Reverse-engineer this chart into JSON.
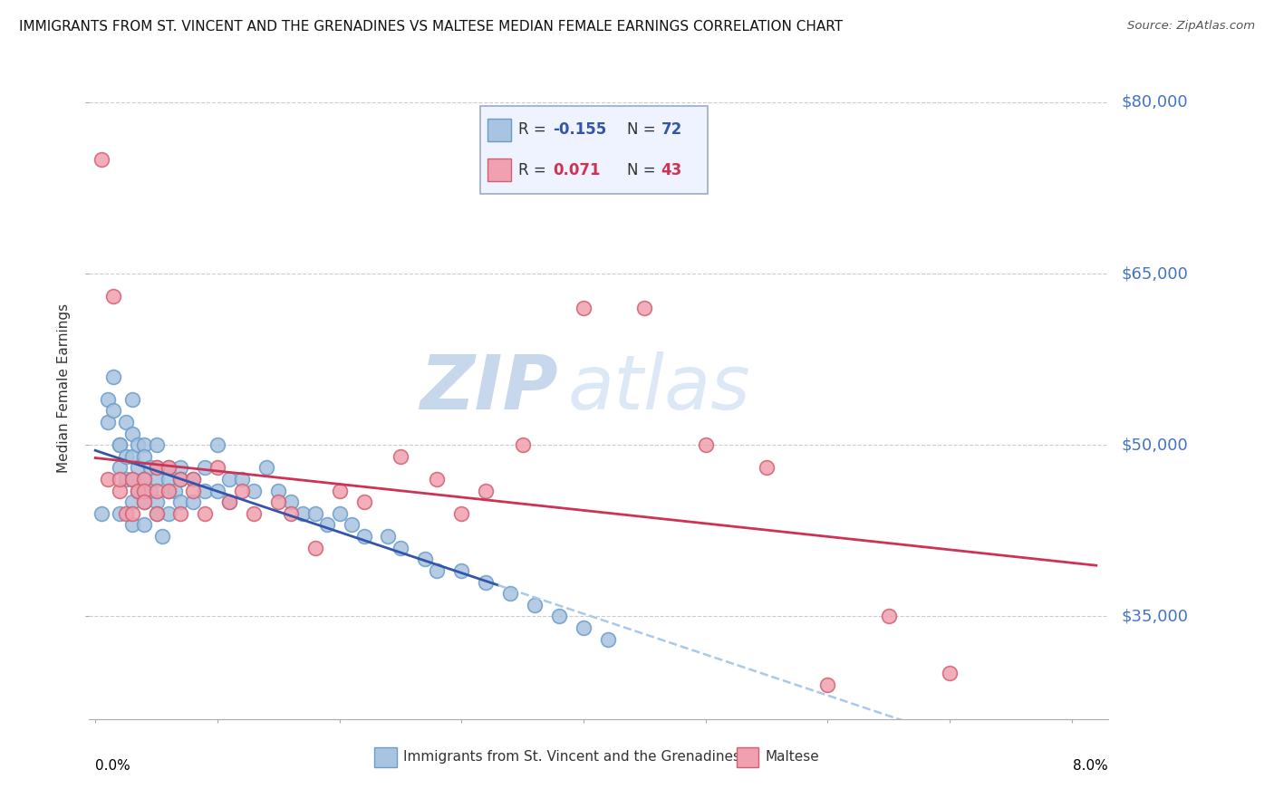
{
  "title": "IMMIGRANTS FROM ST. VINCENT AND THE GRENADINES VS MALTESE MEDIAN FEMALE EARNINGS CORRELATION CHART",
  "source": "Source: ZipAtlas.com",
  "ylabel": "Median Female Earnings",
  "ytick_labels": [
    "$35,000",
    "$50,000",
    "$65,000",
    "$80,000"
  ],
  "ytick_values": [
    35000,
    50000,
    65000,
    80000
  ],
  "ymin": 26000,
  "ymax": 84000,
  "xmin": -0.0005,
  "xmax": 0.083,
  "series1_name": "Immigrants from St. Vincent and the Grenadines",
  "series1_color": "#a8c4e0",
  "series1_edge": "#6a9cc8",
  "series2_name": "Maltese",
  "series2_color": "#f0a0b0",
  "series2_edge": "#d06070",
  "trendline1_color": "#3355aa",
  "trendline2_color": "#cc3355",
  "dashed_line_color": "#aac8e8",
  "watermark": "ZIPatlas",
  "watermark_color": "#dce8f5",
  "series1_x": [
    0.0005,
    0.001,
    0.001,
    0.0015,
    0.0015,
    0.002,
    0.002,
    0.002,
    0.002,
    0.0025,
    0.0025,
    0.0025,
    0.003,
    0.003,
    0.003,
    0.003,
    0.003,
    0.003,
    0.0035,
    0.0035,
    0.0035,
    0.004,
    0.004,
    0.004,
    0.004,
    0.004,
    0.0045,
    0.0045,
    0.005,
    0.005,
    0.005,
    0.005,
    0.005,
    0.0055,
    0.006,
    0.006,
    0.006,
    0.006,
    0.0065,
    0.007,
    0.007,
    0.007,
    0.008,
    0.008,
    0.009,
    0.009,
    0.01,
    0.01,
    0.011,
    0.011,
    0.012,
    0.013,
    0.014,
    0.015,
    0.016,
    0.017,
    0.018,
    0.019,
    0.02,
    0.021,
    0.022,
    0.024,
    0.025,
    0.027,
    0.028,
    0.03,
    0.032,
    0.034,
    0.036,
    0.038,
    0.04,
    0.042
  ],
  "series1_y": [
    44000,
    54000,
    52000,
    56000,
    53000,
    50000,
    50000,
    48000,
    44000,
    52000,
    49000,
    47000,
    54000,
    51000,
    49000,
    47000,
    45000,
    43000,
    50000,
    48000,
    46000,
    50000,
    49000,
    47000,
    45000,
    43000,
    48000,
    46000,
    50000,
    48000,
    47000,
    45000,
    44000,
    42000,
    48000,
    47000,
    46000,
    44000,
    46000,
    48000,
    47000,
    45000,
    47000,
    45000,
    48000,
    46000,
    50000,
    46000,
    47000,
    45000,
    47000,
    46000,
    48000,
    46000,
    45000,
    44000,
    44000,
    43000,
    44000,
    43000,
    42000,
    42000,
    41000,
    40000,
    39000,
    39000,
    38000,
    37000,
    36000,
    35000,
    34000,
    33000
  ],
  "series2_x": [
    0.0005,
    0.001,
    0.0015,
    0.002,
    0.002,
    0.0025,
    0.003,
    0.003,
    0.0035,
    0.004,
    0.004,
    0.004,
    0.005,
    0.005,
    0.005,
    0.006,
    0.006,
    0.007,
    0.007,
    0.008,
    0.008,
    0.009,
    0.01,
    0.011,
    0.012,
    0.013,
    0.015,
    0.016,
    0.018,
    0.02,
    0.022,
    0.025,
    0.028,
    0.03,
    0.032,
    0.035,
    0.04,
    0.045,
    0.05,
    0.055,
    0.06,
    0.065,
    0.07
  ],
  "series2_y": [
    75000,
    47000,
    63000,
    46000,
    47000,
    44000,
    47000,
    44000,
    46000,
    47000,
    46000,
    45000,
    48000,
    46000,
    44000,
    48000,
    46000,
    47000,
    44000,
    47000,
    46000,
    44000,
    48000,
    45000,
    46000,
    44000,
    45000,
    44000,
    41000,
    46000,
    45000,
    49000,
    47000,
    44000,
    46000,
    50000,
    62000,
    62000,
    50000,
    48000,
    29000,
    35000,
    30000
  ]
}
